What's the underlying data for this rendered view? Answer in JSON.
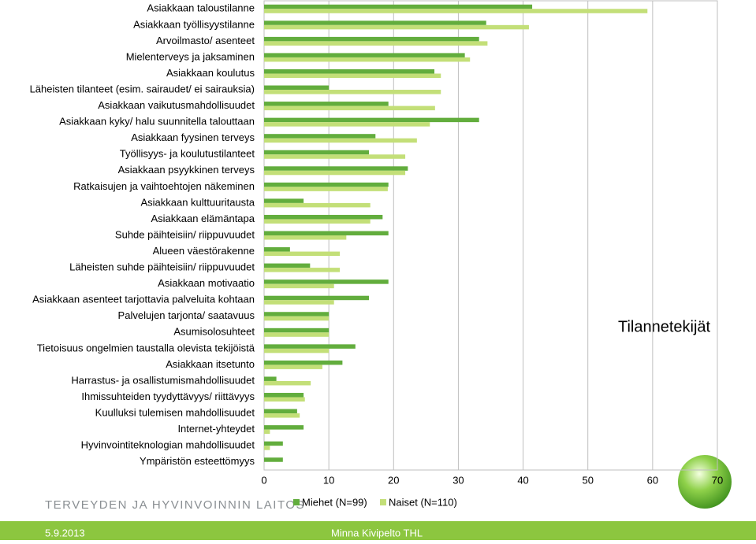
{
  "chart_data": {
    "type": "hbar",
    "annotation": "Tilannetekijät",
    "categories": [
      "Asiakkaan taloustilanne",
      "Asiakkaan työllisyystilanne",
      "Arvoilmasto/ asenteet",
      "Mielenterveys ja jaksaminen",
      "Asiakkaan koulutus",
      "Läheisten tilanteet (esim. sairaudet/  ei sairauksia)",
      "Asiakkaan vaikutusmahdollisuudet",
      "Asiakkaan kyky/ halu suunnitella talouttaan",
      "Asiakkaan fyysinen terveys",
      "Työllisyys- ja koulutustilanteet",
      "Asiakkaan psyykkinen terveys",
      "Ratkaisujen ja vaihtoehtojen näkeminen",
      "Asiakkaan kulttuuritausta",
      "Asiakkaan elämäntapa",
      "Suhde päihteisiin/ riippuvuudet",
      "Alueen väestörakenne",
      "Läheisten suhde päihteisiin/ riippuvuudet",
      "Asiakkaan motivaatio",
      "Asiakkaan asenteet tarjottavia palveluita kohtaan",
      "Palvelujen tarjonta/ saatavuus",
      "Asumisolosuhteet",
      "Tietoisuus ongelmien taustalla olevista tekijöistä",
      "Asiakkaan itsetunto",
      "Harrastus- ja osallistumismahdollisuudet",
      "Ihmissuhteiden tyydyttävyys/ riittävyys",
      "Kuulluksi tulemisen mahdollisuudet",
      "Internet-yhteydet",
      "Hyvinvointiteknologian mahdollisuudet",
      "Ympäristön esteettömyys"
    ],
    "series": [
      {
        "name": "Miehet (N=99)",
        "color": "#62ad3d",
        "values": [
          41.4,
          34.3,
          33.2,
          31.0,
          26.3,
          10.0,
          19.2,
          33.2,
          17.2,
          16.2,
          22.2,
          19.2,
          6.1,
          18.3,
          19.2,
          4.0,
          7.1,
          19.2,
          16.2,
          10.0,
          10.0,
          14.1,
          12.1,
          1.9,
          6.1,
          5.1,
          6.1,
          2.9,
          2.9
        ]
      },
      {
        "name": "Naiset (N=110)",
        "color": "#c3df78",
        "values": [
          59.2,
          40.9,
          34.5,
          31.8,
          27.3,
          27.3,
          26.4,
          25.6,
          23.6,
          21.8,
          21.8,
          19.1,
          16.4,
          16.4,
          12.7,
          11.7,
          11.7,
          10.8,
          10.8,
          10.0,
          10.0,
          10.0,
          9.0,
          7.2,
          6.3,
          5.5,
          0.9,
          0.9,
          0
        ]
      }
    ],
    "xlim": [
      0,
      70
    ],
    "xticks": [
      0,
      10,
      20,
      30,
      40,
      50,
      60,
      70
    ],
    "grid": true,
    "legend": "bottom"
  },
  "footer": {
    "organization": "TERVEYDEN JA HYVINVOINNIN LAITOS",
    "date": "5.9.2013",
    "author": "Minna Kivipelto THL"
  }
}
